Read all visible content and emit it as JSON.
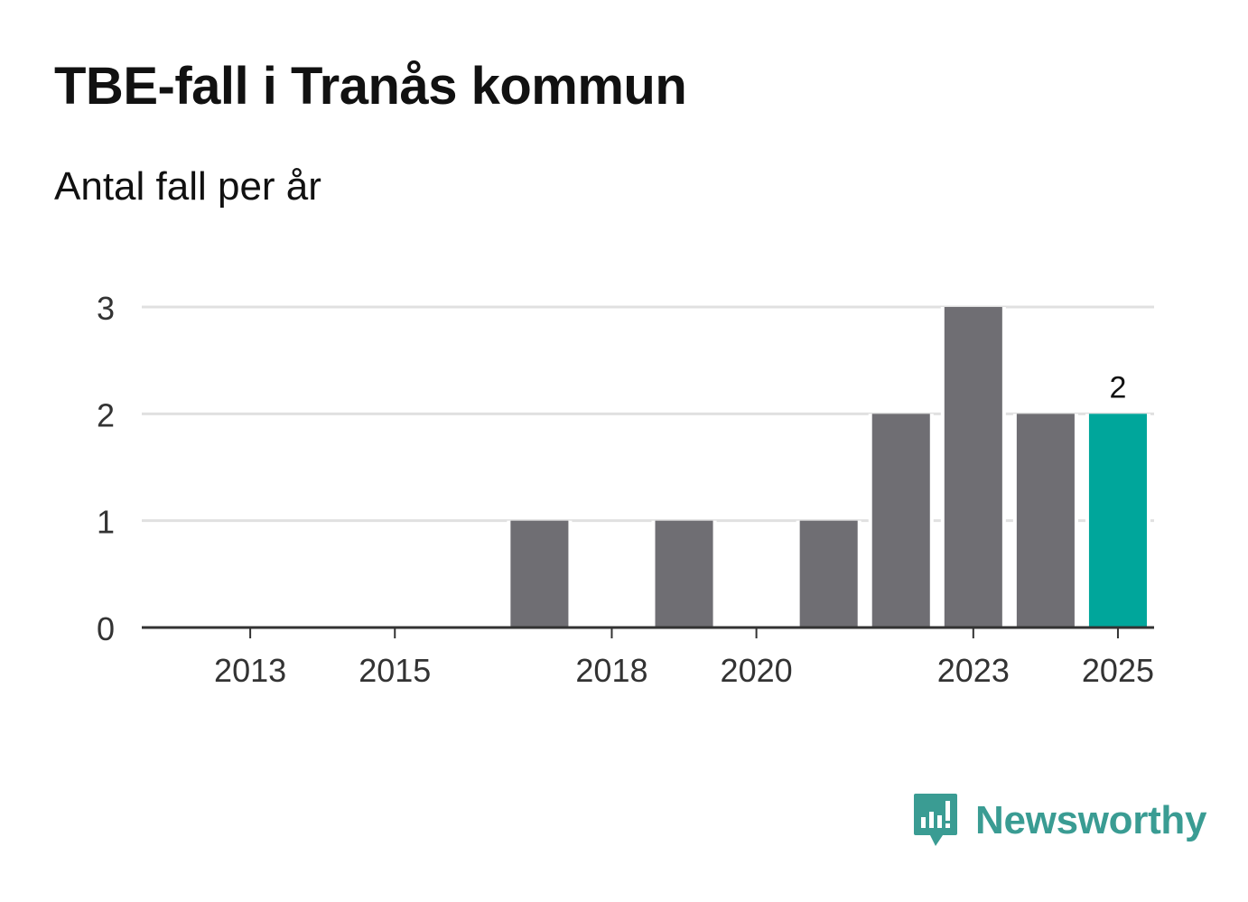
{
  "chart_data": {
    "type": "bar",
    "title": "TBE-fall i Tranås kommun",
    "subtitle": "Antal fall per år",
    "xlabel": "",
    "ylabel": "",
    "categories": [
      "2012",
      "2013",
      "2014",
      "2015",
      "2016",
      "2017",
      "2018",
      "2019",
      "2020",
      "2021",
      "2022",
      "2023",
      "2024",
      "2025"
    ],
    "values": [
      0,
      0,
      0,
      0,
      0,
      1,
      0,
      1,
      0,
      1,
      2,
      3,
      2,
      2
    ],
    "ylim": [
      0,
      3
    ],
    "yticks": [
      "0",
      "1",
      "2",
      "3"
    ],
    "xticks": [
      "2013",
      "2015",
      "2018",
      "2020",
      "2023",
      "2025"
    ],
    "highlight": {
      "category": "2025",
      "label": "2"
    },
    "grid": true,
    "colors": {
      "bar": "#6f6e73",
      "highlight": "#00a69b",
      "grid": "#e0e0e0",
      "axis": "#333333",
      "text": "#333333"
    }
  },
  "brand": {
    "name": "Newsworthy",
    "icon": "newsworthy-logo-icon",
    "color": "#3a9c93"
  }
}
